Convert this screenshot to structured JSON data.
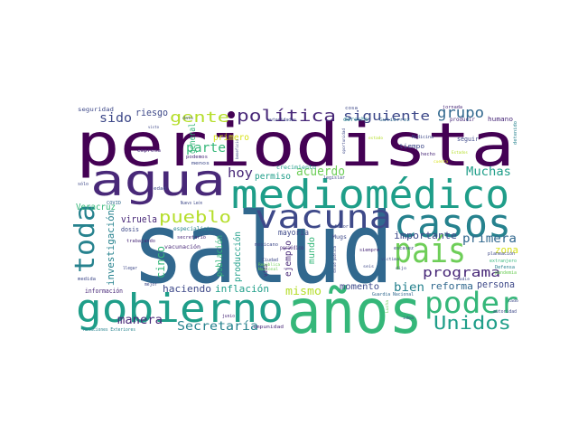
{
  "palette": {
    "dark_purple": "#440154",
    "purple": "#482878",
    "indigo": "#3e4989",
    "blue": "#31688e",
    "steel": "#26828e",
    "teal": "#1f9e89",
    "green": "#35b779",
    "lime": "#6ece58",
    "yellow_green": "#b5de2b",
    "yellow": "#d8e219"
  },
  "words": [
    "periodista",
    "salud",
    "agua",
    "años",
    "médico",
    "medio",
    "casos",
    "vacuna",
    "país",
    "gobierno",
    "poder",
    "Unidos",
    "toda",
    "pueblo",
    "política",
    "gente",
    "siguiente",
    "grupo",
    "sido",
    "riesgo",
    "parte",
    "hoy",
    "acuerdo",
    "Muchas",
    "programa",
    "primera",
    "bien",
    "reforma",
    "persona",
    "Secretaría",
    "manera",
    "haciendo",
    "inflación",
    "mismo",
    "importante",
    "zona",
    "momento",
    "cinco",
    "investigación",
    "viruela",
    "Veracruz",
    "población",
    "producción",
    "ejemplo",
    "mundo",
    "mayoría",
    "general",
    "primero",
    "permiso",
    "seguridad",
    "información",
    "especialista",
    "crecimiento",
    "tiempo",
    "seguir",
    "humano",
    "derecho",
    "dosis",
    "vacunación",
    "Relaciones Exteriores",
    "COVID",
    "medida",
    "mejor",
    "junio",
    "impunidad",
    "Guardia Nacional",
    "Defensa",
    "autoridad",
    "planeación",
    "extranjero",
    "pandemia",
    "escasez",
    "siempre",
    "Mugs",
    "favor",
    "mexicano",
    "periódico",
    "vida",
    "legislar",
    "Medicina",
    "hecho",
    "cosa",
    "jornada",
    "producir",
    "detenido",
    "empresa",
    "podemos",
    "menos",
    "edad",
    "llegar",
    "trabajando",
    "secretario",
    "Ciudad",
    "República",
    "Nacional",
    "autoridades",
    "oportunidad",
    "beneficio",
    "dato",
    "estado",
    "sólo",
    "Nuevo León",
    "salud pública",
    "víctima",
    "lado",
    "idea",
    "Lucha",
    "Gutiérrez",
    "dijo",
    "seis",
    "nadie",
    "cuenta",
    "Estados",
    "visto"
  ]
}
